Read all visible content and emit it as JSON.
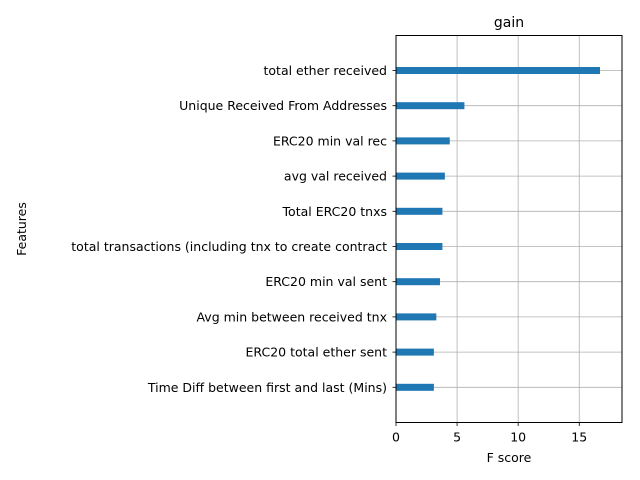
{
  "chart_data": {
    "type": "bar",
    "orientation": "horizontal",
    "title": "gain",
    "xlabel": "F score",
    "ylabel": "Features",
    "xlim": [
      0,
      18.5
    ],
    "xticks": [
      0,
      5,
      10,
      15
    ],
    "grid": true,
    "bar_color": "#1f77b4",
    "categories": [
      "total ether received",
      "Unique Received From Addresses",
      "ERC20 min val rec",
      "avg val received",
      "Total ERC20 tnxs",
      "total transactions (including tnx to create contract",
      "ERC20 min val sent",
      "Avg min between received tnx",
      "ERC20 total ether sent",
      "Time Diff between first and last (Mins)"
    ],
    "values": [
      16.7,
      5.6,
      4.4,
      4.0,
      3.8,
      3.8,
      3.6,
      3.3,
      3.1,
      3.1
    ]
  }
}
